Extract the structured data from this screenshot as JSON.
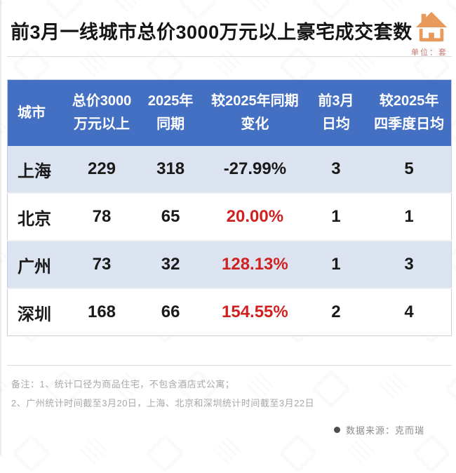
{
  "header": {
    "title": "前3月一线城市总价3000万元以上豪宅成交套数",
    "unit_label": "单位：套"
  },
  "colors": {
    "header_bg": "#4470C4",
    "row_alt_bg": "#DCE3F1",
    "row_bg": "#FFFFFF",
    "text": "#1A1A1A",
    "red": "#CF2220",
    "house_orange": "#E8995C",
    "unit_text": "#C3796A",
    "note_text": "#A8A8A8"
  },
  "table": {
    "columns": [
      {
        "line1": "城市",
        "line2": ""
      },
      {
        "line1": "总价3000",
        "line2": "万元以上"
      },
      {
        "line1": "2025年",
        "line2": "同期"
      },
      {
        "line1": "较2025年同期",
        "line2": "变化"
      },
      {
        "line1": "前3月",
        "line2": "日均"
      },
      {
        "line1": "较2025年",
        "line2": "四季度日均"
      }
    ],
    "rows": [
      {
        "city": "上海",
        "current": "229",
        "same_period": "318",
        "change": "-27.99%",
        "change_red": false,
        "daily_avg": "3",
        "vs_q4": "5"
      },
      {
        "city": "北京",
        "current": "78",
        "same_period": "65",
        "change": "20.00%",
        "change_red": true,
        "daily_avg": "1",
        "vs_q4": "1"
      },
      {
        "city": "广州",
        "current": "73",
        "same_period": "32",
        "change": "128.13%",
        "change_red": true,
        "daily_avg": "1",
        "vs_q4": "3"
      },
      {
        "city": "深圳",
        "current": "168",
        "same_period": "66",
        "change": "154.55%",
        "change_red": true,
        "daily_avg": "2",
        "vs_q4": "4"
      }
    ]
  },
  "notes": {
    "line1": "备注：1、统计口径为商品住宅，不包含酒店式公寓；",
    "line2": "2、广州统计时间截至3月20日，上海、北京和深圳统计时间截至3月22日"
  },
  "source": {
    "label": "数据来源：克而瑞"
  },
  "chart_data": {
    "type": "table",
    "title": "前3月一线城市总价3000万元以上豪宅成交套数",
    "unit": "套",
    "columns": [
      "城市",
      "总价3000万元以上",
      "2025年同期",
      "较2025年同期变化",
      "前3月日均",
      "较2025年四季度日均"
    ],
    "rows": [
      [
        "上海",
        229,
        318,
        "-27.99%",
        3,
        5
      ],
      [
        "北京",
        78,
        65,
        "20.00%",
        1,
        1
      ],
      [
        "广州",
        73,
        32,
        "128.13%",
        1,
        3
      ],
      [
        "深圳",
        168,
        66,
        "154.55%",
        2,
        4
      ]
    ],
    "notes": [
      "备注：1、统计口径为商品住宅，不包含酒店式公寓；",
      "2、广州统计时间截至3月20日，上海、北京和深圳统计时间截至3月22日"
    ],
    "source": "克而瑞"
  }
}
